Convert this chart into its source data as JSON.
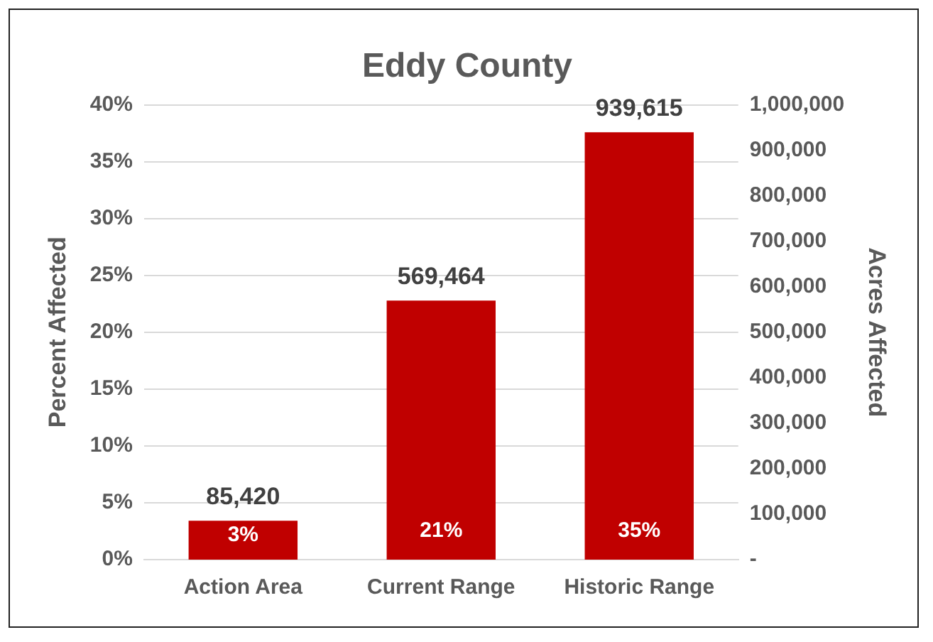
{
  "chart_data": {
    "type": "bar",
    "title": "Eddy County",
    "ylabel": "Percent Affected",
    "y2label": "Acres Affected",
    "categories": [
      "Action Area",
      "Current Range",
      "Historic Range"
    ],
    "series": [
      {
        "color": "#c00000",
        "axis": "y2",
        "values": [
          85420,
          569464,
          939615
        ],
        "value_labels": [
          "85,420",
          "569,464",
          "939,615"
        ]
      }
    ],
    "ylim": [
      0,
      40
    ],
    "yticks": [
      {
        "value": 0,
        "label": "0%"
      },
      {
        "value": 5,
        "label": "5%"
      },
      {
        "value": 10,
        "label": "10%"
      },
      {
        "value": 15,
        "label": "15%"
      },
      {
        "value": 20,
        "label": "20%"
      },
      {
        "value": 25,
        "label": "25%"
      },
      {
        "value": 30,
        "label": "30%"
      },
      {
        "value": 35,
        "label": "35%"
      },
      {
        "value": 40,
        "label": "40%"
      }
    ],
    "y2lim": [
      0,
      1000000
    ],
    "y2ticks": [
      {
        "value": 0,
        "label": "-"
      },
      {
        "value": 100000,
        "label": "100,000"
      },
      {
        "value": 200000,
        "label": "200,000"
      },
      {
        "value": 300000,
        "label": "300,000"
      },
      {
        "value": 400000,
        "label": "400,000"
      },
      {
        "value": 500000,
        "label": "500,000"
      },
      {
        "value": 600000,
        "label": "600,000"
      },
      {
        "value": 700000,
        "label": "700,000"
      },
      {
        "value": 800000,
        "label": "800,000"
      },
      {
        "value": 900000,
        "label": "900,000"
      },
      {
        "value": 1000000,
        "label": "1,000,000"
      }
    ],
    "annotations": [
      "3%",
      "21%",
      "35%"
    ],
    "grid": "y",
    "legend": false
  }
}
